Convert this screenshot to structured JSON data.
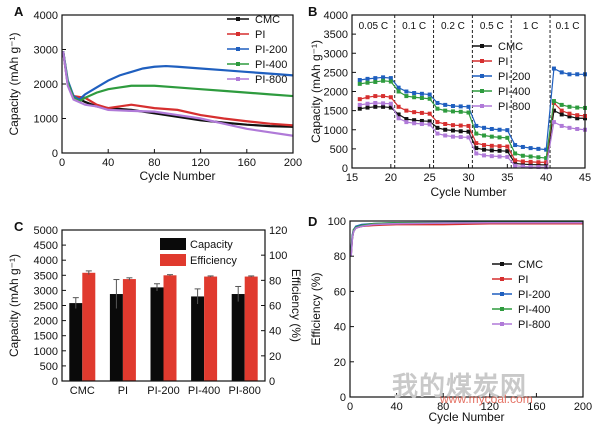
{
  "watermark": {
    "brand": "我的煤炭网",
    "url": "www.mycoal.com"
  },
  "colors": {
    "CMC": "#111111",
    "PI": "#d62f2f",
    "PI-200": "#1f5fbf",
    "PI-400": "#2e9b3e",
    "PI-800": "#b07ad8"
  },
  "chart_data": [
    {
      "panel": "A",
      "type": "line",
      "xlabel": "Cycle Number",
      "ylabel": "Capacity (mAh g⁻¹)",
      "xlim": [
        0,
        200
      ],
      "ylim": [
        0,
        4000
      ],
      "xticks": [
        0,
        40,
        80,
        120,
        160,
        200
      ],
      "yticks": [
        0,
        1000,
        2000,
        3000,
        4000
      ],
      "legend": "top-right",
      "series": [
        {
          "name": "CMC",
          "x": [
            1,
            5,
            10,
            20,
            30,
            40,
            60,
            80,
            100,
            120,
            140,
            160,
            180,
            200
          ],
          "y": [
            2950,
            2000,
            1650,
            1480,
            1350,
            1300,
            1250,
            1150,
            1050,
            950,
            880,
            820,
            780,
            760
          ]
        },
        {
          "name": "PI",
          "x": [
            1,
            5,
            10,
            20,
            30,
            40,
            60,
            80,
            100,
            120,
            140,
            160,
            180,
            200
          ],
          "y": [
            2950,
            2000,
            1650,
            1600,
            1400,
            1300,
            1400,
            1300,
            1250,
            1100,
            1000,
            920,
            850,
            800
          ]
        },
        {
          "name": "PI-200",
          "x": [
            1,
            5,
            10,
            15,
            20,
            30,
            40,
            50,
            60,
            70,
            80,
            90,
            100,
            120,
            140,
            160,
            180,
            200
          ],
          "y": [
            2950,
            2100,
            1650,
            1550,
            1700,
            1900,
            2100,
            2250,
            2350,
            2450,
            2500,
            2520,
            2500,
            2450,
            2400,
            2350,
            2300,
            2250
          ]
        },
        {
          "name": "PI-400",
          "x": [
            1,
            5,
            10,
            15,
            20,
            30,
            40,
            50,
            60,
            80,
            100,
            120,
            140,
            160,
            180,
            200
          ],
          "y": [
            2950,
            2050,
            1600,
            1500,
            1600,
            1750,
            1850,
            1900,
            1950,
            1950,
            1900,
            1850,
            1800,
            1750,
            1700,
            1650
          ]
        },
        {
          "name": "PI-800",
          "x": [
            1,
            5,
            10,
            20,
            30,
            40,
            60,
            80,
            100,
            120,
            140,
            160,
            180,
            200
          ],
          "y": [
            2950,
            1950,
            1550,
            1400,
            1350,
            1250,
            1220,
            1200,
            1100,
            1000,
            850,
            700,
            600,
            500
          ]
        }
      ]
    },
    {
      "panel": "B",
      "type": "scatter",
      "xlabel": "Cycle Number",
      "ylabel": "Capacity (mAh g⁻¹)",
      "xlim": [
        15,
        45
      ],
      "ylim": [
        0,
        4000
      ],
      "xticks": [
        15,
        20,
        25,
        30,
        35,
        40,
        45
      ],
      "yticks": [
        0,
        500,
        1000,
        1500,
        2000,
        2500,
        3000,
        3500,
        4000
      ],
      "rate_labels": [
        "0.05 C",
        "0.1 C",
        "0.2 C",
        "0.5 C",
        "1 C",
        "0.1 C"
      ],
      "dividers": [
        20.5,
        25.5,
        30.5,
        35.5,
        40.5
      ],
      "legend": "right",
      "x": [
        16,
        17,
        18,
        19,
        20,
        21,
        22,
        23,
        24,
        25,
        26,
        27,
        28,
        29,
        30,
        31,
        32,
        33,
        34,
        35,
        36,
        37,
        38,
        39,
        40,
        41,
        42,
        43,
        44,
        45
      ],
      "series": [
        {
          "name": "CMC",
          "y": [
            1550,
            1580,
            1600,
            1600,
            1580,
            1400,
            1280,
            1250,
            1230,
            1220,
            1050,
            1000,
            980,
            960,
            950,
            520,
            480,
            460,
            450,
            440,
            120,
            100,
            90,
            85,
            80,
            1500,
            1400,
            1350,
            1300,
            1300
          ]
        },
        {
          "name": "PI",
          "y": [
            1800,
            1850,
            1880,
            1880,
            1850,
            1600,
            1500,
            1460,
            1440,
            1420,
            1200,
            1150,
            1120,
            1110,
            1100,
            650,
            600,
            580,
            570,
            560,
            200,
            170,
            160,
            150,
            150,
            1700,
            1500,
            1420,
            1380,
            1360
          ]
        },
        {
          "name": "PI-200",
          "y": [
            2300,
            2330,
            2350,
            2370,
            2350,
            2100,
            2000,
            1960,
            1940,
            1920,
            1700,
            1650,
            1620,
            1610,
            1600,
            1100,
            1050,
            1020,
            1000,
            990,
            600,
            550,
            520,
            500,
            480,
            2600,
            2500,
            2450,
            2450,
            2450
          ]
        },
        {
          "name": "PI-400",
          "y": [
            2200,
            2230,
            2250,
            2280,
            2260,
            2000,
            1880,
            1850,
            1830,
            1810,
            1550,
            1500,
            1480,
            1470,
            1450,
            900,
            850,
            820,
            800,
            790,
            380,
            320,
            300,
            280,
            260,
            1750,
            1650,
            1600,
            1580,
            1570
          ]
        },
        {
          "name": "PI-800",
          "y": [
            1650,
            1680,
            1700,
            1690,
            1680,
            1300,
            1200,
            1170,
            1150,
            1140,
            900,
            850,
            820,
            810,
            800,
            380,
            330,
            310,
            300,
            290,
            60,
            40,
            30,
            25,
            20,
            1200,
            1100,
            1050,
            1020,
            1000
          ]
        }
      ]
    },
    {
      "panel": "C",
      "type": "bar",
      "categories": [
        "CMC",
        "PI",
        "PI-200",
        "PI-400",
        "PI-800"
      ],
      "ylabel": "Capacity (mAh g⁻¹)",
      "y2label": "Efficiency (%)",
      "ylim": [
        0,
        5000
      ],
      "y2lim": [
        0,
        120
      ],
      "yticks": [
        0,
        500,
        1000,
        1500,
        2000,
        2500,
        3000,
        3500,
        4000,
        4500,
        5000
      ],
      "y2ticks": [
        0,
        20,
        40,
        60,
        80,
        100,
        120
      ],
      "legend": "top",
      "series": [
        {
          "name": "Capacity",
          "axis": "left",
          "color": "#0a0a0a",
          "values": [
            2580,
            2880,
            3100,
            2800,
            2880
          ],
          "errors": [
            180,
            480,
            120,
            250,
            250
          ]
        },
        {
          "name": "Efficiency",
          "axis": "right",
          "color": "#e03a2e",
          "values": [
            86,
            81,
            84,
            83,
            83
          ],
          "errors": [
            1.5,
            1.0,
            0.5,
            0.5,
            0.5
          ]
        }
      ]
    },
    {
      "panel": "D",
      "type": "line",
      "xlabel": "Cycle Number",
      "ylabel": "Efficiency (%)",
      "xlim": [
        0,
        200
      ],
      "ylim": [
        0,
        100
      ],
      "xticks": [
        0,
        40,
        80,
        120,
        160,
        200
      ],
      "yticks": [
        0,
        20,
        40,
        60,
        80,
        100
      ],
      "legend": "right",
      "series": [
        {
          "name": "CMC",
          "x": [
            1,
            2,
            3,
            5,
            10,
            20,
            40,
            80,
            120,
            160,
            200
          ],
          "y": [
            81,
            90,
            94,
            96,
            97,
            98,
            98.5,
            99,
            99,
            99,
            99
          ]
        },
        {
          "name": "PI",
          "x": [
            1,
            2,
            3,
            5,
            10,
            20,
            40,
            80,
            120,
            160,
            200
          ],
          "y": [
            82,
            91,
            95,
            96,
            97,
            97.5,
            98,
            98,
            98.5,
            98.5,
            98.5
          ]
        },
        {
          "name": "PI-200",
          "x": [
            1,
            2,
            3,
            5,
            10,
            20,
            40,
            80,
            120,
            160,
            200
          ],
          "y": [
            84,
            92,
            95,
            97,
            98,
            98.5,
            99,
            99.2,
            99.3,
            99.3,
            99.4
          ]
        },
        {
          "name": "PI-400",
          "x": [
            1,
            2,
            3,
            5,
            10,
            20,
            40,
            80,
            120,
            160,
            200
          ],
          "y": [
            83,
            91,
            95,
            96.5,
            97.5,
            98.5,
            99,
            99,
            99.2,
            99.2,
            99.2
          ]
        },
        {
          "name": "PI-800",
          "x": [
            1,
            2,
            3,
            5,
            10,
            20,
            40,
            80,
            120,
            160,
            200
          ],
          "y": [
            80,
            90,
            94,
            96,
            97,
            98,
            98.5,
            98.8,
            99,
            99,
            99
          ]
        }
      ]
    }
  ]
}
